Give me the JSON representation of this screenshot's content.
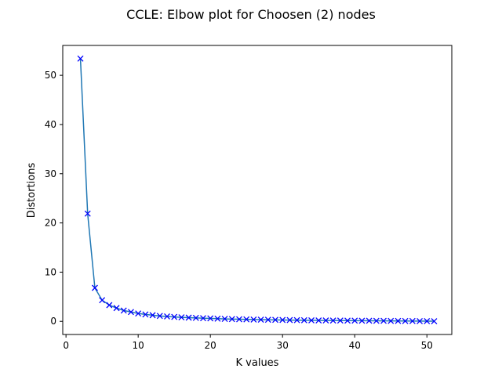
{
  "chart_data": {
    "type": "line",
    "title": "CCLE: Elbow plot for Choosen (2) nodes",
    "xlabel": "K values",
    "ylabel": "Distortions",
    "xlim": [
      -0.45,
      53.45
    ],
    "ylim": [
      -2.67,
      56.07
    ],
    "xticks": [
      0,
      10,
      20,
      30,
      40,
      50
    ],
    "yticks": [
      0,
      10,
      20,
      30,
      40,
      50
    ],
    "grid": false,
    "legend": "none",
    "line_color": "#1f77b4",
    "marker_color": "#0000ff",
    "marker": "x",
    "series": [
      {
        "x": [
          2,
          3,
          4,
          5,
          6,
          7,
          8,
          9,
          10,
          11,
          12,
          13,
          14,
          15,
          16,
          17,
          18,
          19,
          20,
          21,
          22,
          23,
          24,
          25,
          26,
          27,
          28,
          29,
          30,
          31,
          32,
          33,
          34,
          35,
          36,
          37,
          38,
          39,
          40,
          41,
          42,
          43,
          44,
          45,
          46,
          47,
          48,
          49,
          50,
          51
        ],
        "values": [
          53.4,
          21.9,
          6.8,
          4.3,
          3.3,
          2.7,
          2.2,
          1.9,
          1.6,
          1.4,
          1.25,
          1.1,
          1.0,
          0.9,
          0.82,
          0.75,
          0.7,
          0.64,
          0.6,
          0.55,
          0.5,
          0.46,
          0.43,
          0.4,
          0.37,
          0.34,
          0.32,
          0.3,
          0.28,
          0.26,
          0.24,
          0.22,
          0.21,
          0.19,
          0.18,
          0.17,
          0.16,
          0.15,
          0.14,
          0.13,
          0.12,
          0.11,
          0.1,
          0.09,
          0.08,
          0.07,
          0.06,
          0.05,
          0.04,
          0.03
        ]
      }
    ]
  }
}
